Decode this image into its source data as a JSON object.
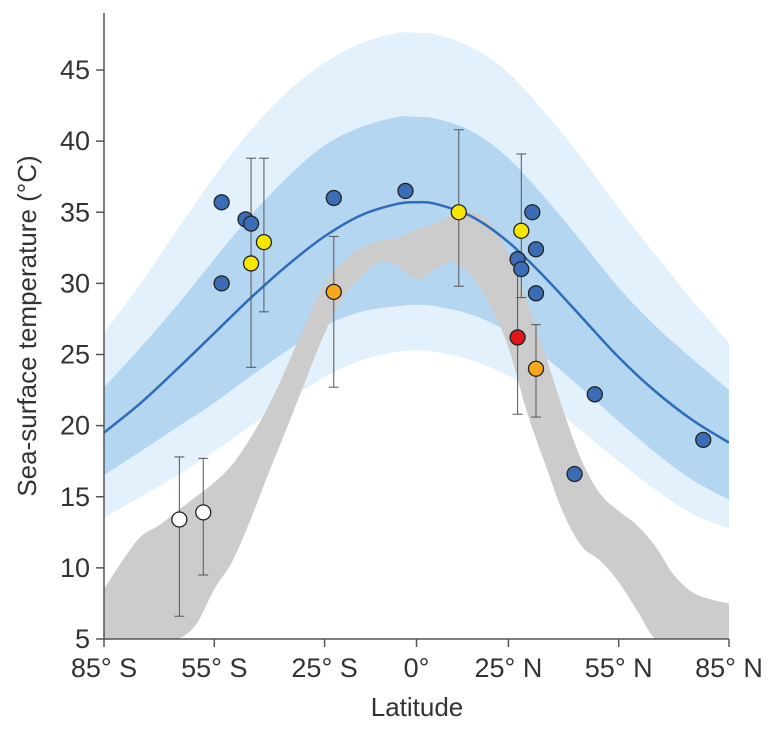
{
  "chart_data": {
    "type": "scatter",
    "xlabel": "Latitude",
    "ylabel": "Sea-surface temperature (°C)",
    "xlim": [
      -85,
      85
    ],
    "ylim": [
      5,
      48
    ],
    "x_ticks": [
      {
        "value": -85,
        "label": "85° S"
      },
      {
        "value": -55,
        "label": "55° S"
      },
      {
        "value": -25,
        "label": "25° S"
      },
      {
        "value": 0,
        "label": "0°"
      },
      {
        "value": 25,
        "label": "25° N"
      },
      {
        "value": 55,
        "label": "55° N"
      },
      {
        "value": 85,
        "label": "85° N"
      }
    ],
    "y_ticks": [
      {
        "value": 5,
        "label": "5"
      },
      {
        "value": 10,
        "label": "10"
      },
      {
        "value": 15,
        "label": "15"
      },
      {
        "value": 20,
        "label": "20"
      },
      {
        "value": 25,
        "label": "25"
      },
      {
        "value": 30,
        "label": "30"
      },
      {
        "value": 35,
        "label": "35"
      },
      {
        "value": 40,
        "label": "40"
      },
      {
        "value": 45,
        "label": "45"
      }
    ],
    "colors": {
      "outer_band": "#e3f1fd",
      "inner_band": "#b4d6f0",
      "fit_line": "#2d6bbb",
      "modern_band": "#cccccc",
      "blue": "#3a6db5",
      "yellow": "#f6e600",
      "orange": "#f7a81b",
      "red": "#e4141b",
      "white": "#ffffff",
      "axis": "#555555"
    },
    "fit_curve": [
      {
        "x": -85,
        "y": 19.5
      },
      {
        "x": -75,
        "y": 21.6
      },
      {
        "x": -65,
        "y": 24.0
      },
      {
        "x": -55,
        "y": 26.5
      },
      {
        "x": -45,
        "y": 29.0
      },
      {
        "x": -35,
        "y": 31.3
      },
      {
        "x": -25,
        "y": 33.3
      },
      {
        "x": -15,
        "y": 34.8
      },
      {
        "x": -5,
        "y": 35.6
      },
      {
        "x": 0,
        "y": 35.7
      },
      {
        "x": 5,
        "y": 35.6
      },
      {
        "x": 15,
        "y": 34.7
      },
      {
        "x": 25,
        "y": 32.9
      },
      {
        "x": 35,
        "y": 30.4
      },
      {
        "x": 45,
        "y": 27.6
      },
      {
        "x": 55,
        "y": 24.8
      },
      {
        "x": 65,
        "y": 22.4
      },
      {
        "x": 75,
        "y": 20.4
      },
      {
        "x": 85,
        "y": 18.8
      }
    ],
    "inner_band": {
      "x": [
        -85,
        -75,
        -65,
        -55,
        -45,
        -35,
        -25,
        -15,
        -5,
        0,
        5,
        15,
        25,
        35,
        45,
        55,
        65,
        75,
        85
      ],
      "upper": [
        22.7,
        25.5,
        28.5,
        31.7,
        34.8,
        37.5,
        39.7,
        41.0,
        41.7,
        41.7,
        41.6,
        40.7,
        38.8,
        36.0,
        32.9,
        29.7,
        27.0,
        24.7,
        22.5
      ],
      "lower": [
        16.5,
        18.2,
        19.9,
        21.6,
        23.5,
        25.3,
        27.0,
        28.0,
        28.4,
        28.5,
        28.4,
        27.8,
        26.6,
        24.8,
        22.6,
        20.3,
        18.1,
        16.2,
        14.8
      ]
    },
    "outer_band": {
      "x": [
        -85,
        -75,
        -65,
        -55,
        -45,
        -35,
        -25,
        -15,
        -5,
        0,
        5,
        15,
        25,
        35,
        45,
        55,
        65,
        75,
        85
      ],
      "upper": [
        26.5,
        30.0,
        33.8,
        37.5,
        40.8,
        43.5,
        45.5,
        46.9,
        47.6,
        47.6,
        47.5,
        46.6,
        44.8,
        42.0,
        38.8,
        35.3,
        32.0,
        28.8,
        25.8
      ],
      "lower": [
        13.5,
        15.0,
        16.5,
        18.2,
        20.0,
        21.8,
        23.4,
        24.6,
        25.2,
        25.3,
        25.2,
        24.6,
        23.5,
        21.8,
        19.6,
        17.5,
        15.5,
        13.8,
        12.8
      ]
    },
    "modern_band": {
      "x": [
        -85,
        -80,
        -75,
        -70,
        -65,
        -60,
        -55,
        -50,
        -45,
        -40,
        -35,
        -30,
        -25,
        -20,
        -15,
        -10,
        -5,
        0,
        5,
        10,
        15,
        20,
        25,
        30,
        35,
        40,
        45,
        50,
        55,
        60,
        65,
        70,
        75,
        80,
        85
      ],
      "upper": [
        8.5,
        10.5,
        12.2,
        13.0,
        14.0,
        15.0,
        16.0,
        17.3,
        19.2,
        21.5,
        24.3,
        27.3,
        30.0,
        31.5,
        32.5,
        33.0,
        33.2,
        33.8,
        34.2,
        34.8,
        35.0,
        34.3,
        32.0,
        28.8,
        25.0,
        21.0,
        17.5,
        15.2,
        14.0,
        13.0,
        11.5,
        9.5,
        8.3,
        7.8,
        7.5
      ],
      "lower": [
        5.0,
        5.0,
        5.0,
        5.0,
        5.0,
        6.0,
        8.5,
        10.5,
        13.5,
        16.8,
        20.0,
        23.3,
        26.5,
        29.0,
        30.5,
        31.5,
        31.2,
        30.3,
        31.0,
        31.5,
        30.5,
        28.5,
        25.5,
        21.0,
        17.3,
        13.8,
        11.5,
        10.5,
        9.0,
        7.0,
        5.0,
        5.0,
        5.0,
        5.0,
        5.0
      ]
    },
    "points": [
      {
        "x": -64.5,
        "y": 13.4,
        "color": "white",
        "err": [
          6.6,
          17.8
        ]
      },
      {
        "x": -58.0,
        "y": 13.9,
        "color": "white",
        "err": [
          9.5,
          17.7
        ]
      },
      {
        "x": -53.0,
        "y": 35.7,
        "color": "blue"
      },
      {
        "x": -53.0,
        "y": 30.0,
        "color": "blue"
      },
      {
        "x": -46.5,
        "y": 34.5,
        "color": "blue"
      },
      {
        "x": -45.0,
        "y": 34.2,
        "color": "blue"
      },
      {
        "x": -45.0,
        "y": 31.4,
        "color": "yellow",
        "err": [
          24.1,
          38.8
        ]
      },
      {
        "x": -41.5,
        "y": 32.9,
        "color": "yellow",
        "err": [
          28.0,
          38.8
        ]
      },
      {
        "x": -22.5,
        "y": 36.0,
        "color": "blue"
      },
      {
        "x": -22.5,
        "y": 29.4,
        "color": "orange",
        "err": [
          22.7,
          33.3
        ]
      },
      {
        "x": -3.0,
        "y": 36.5,
        "color": "blue"
      },
      {
        "x": 11.5,
        "y": 35.0,
        "color": "yellow",
        "err": [
          29.8,
          40.8
        ]
      },
      {
        "x": 27.5,
        "y": 31.7,
        "color": "blue"
      },
      {
        "x": 28.5,
        "y": 31.0,
        "color": "blue"
      },
      {
        "x": 28.5,
        "y": 33.7,
        "color": "yellow",
        "err": [
          29.0,
          39.1
        ]
      },
      {
        "x": 27.5,
        "y": 26.2,
        "color": "red",
        "err": [
          20.8,
          31.5
        ]
      },
      {
        "x": 31.5,
        "y": 35.0,
        "color": "blue"
      },
      {
        "x": 32.5,
        "y": 32.4,
        "color": "blue"
      },
      {
        "x": 32.5,
        "y": 29.3,
        "color": "blue"
      },
      {
        "x": 32.5,
        "y": 24.0,
        "color": "orange",
        "err": [
          20.6,
          27.1
        ]
      },
      {
        "x": 43.0,
        "y": 16.6,
        "color": "blue"
      },
      {
        "x": 48.5,
        "y": 22.2,
        "color": "blue"
      },
      {
        "x": 78.0,
        "y": 19.0,
        "color": "blue"
      }
    ]
  }
}
